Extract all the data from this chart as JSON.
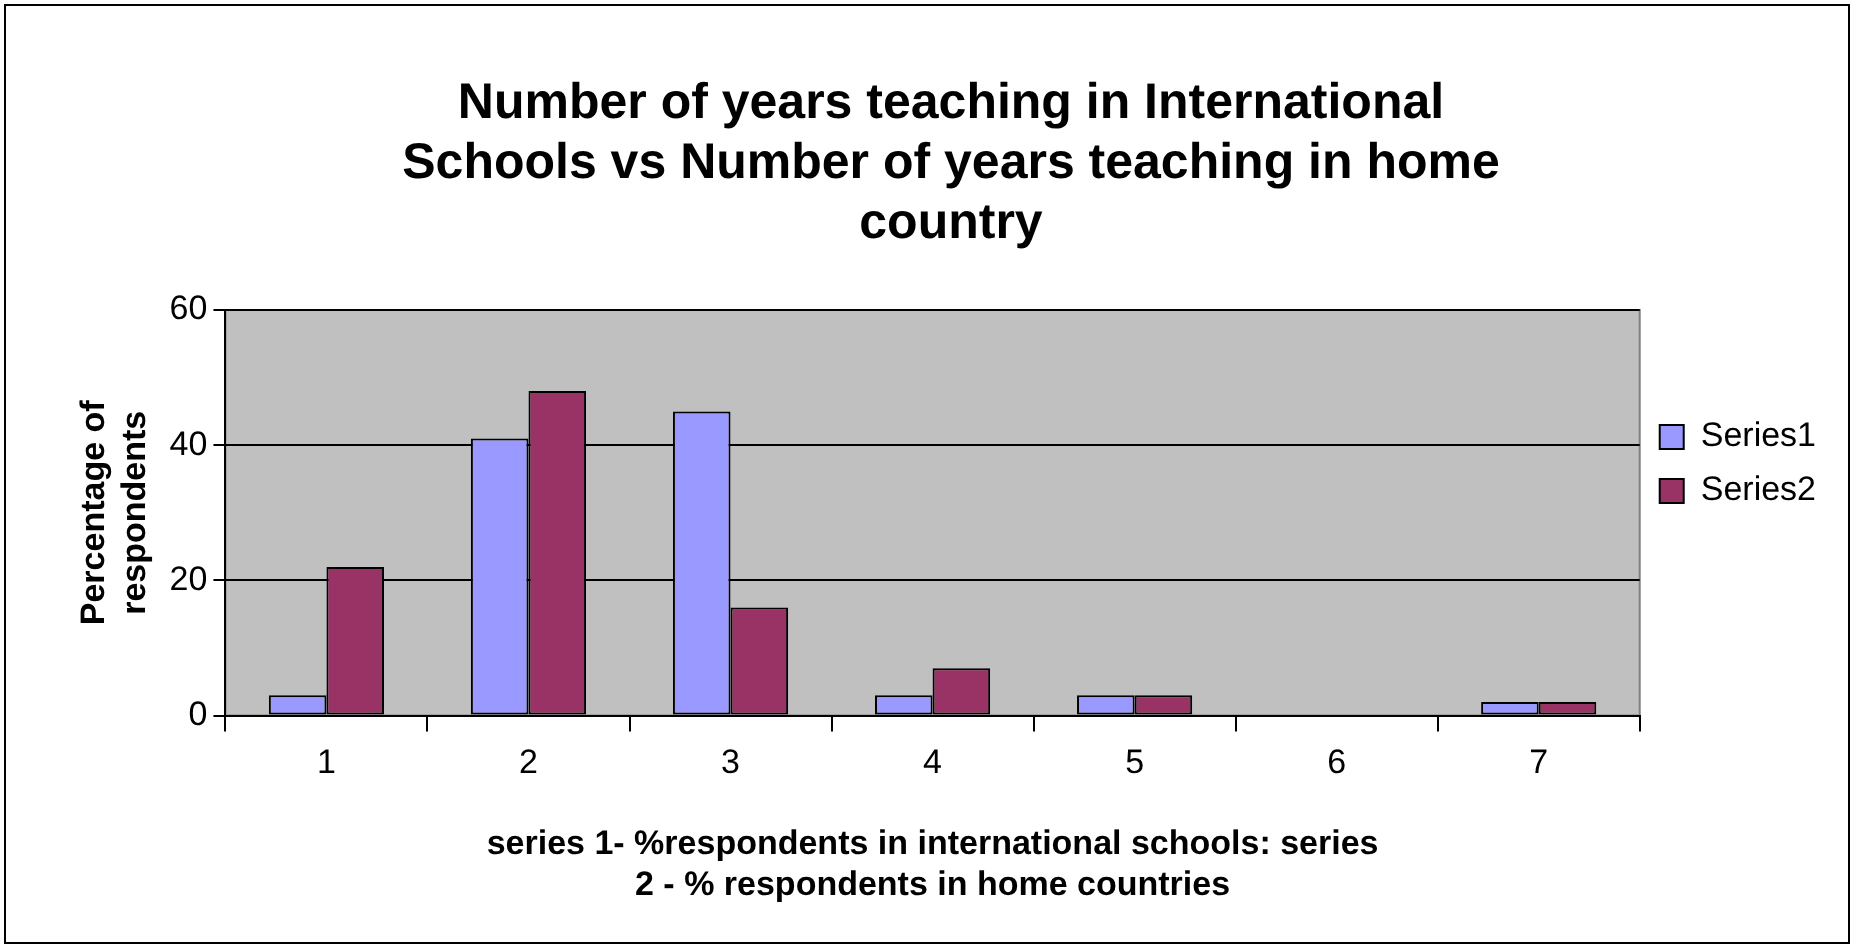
{
  "chart_data": {
    "type": "bar",
    "title": "Number of years teaching in International Schools vs Number of years teaching in home country",
    "xlabel": "series 1- %respondents in international schools: series 2 - % respondents in home countries",
    "ylabel": "Percentage of respondents",
    "categories": [
      "1",
      "2",
      "3",
      "4",
      "5",
      "6",
      "7"
    ],
    "series": [
      {
        "name": "Series1",
        "color": "#9999ff",
        "values": [
          3,
          41,
          45,
          3,
          3,
          0,
          2
        ]
      },
      {
        "name": "Series2",
        "color": "#993366",
        "values": [
          22,
          48,
          16,
          7,
          3,
          0,
          2
        ]
      }
    ],
    "ylim": [
      0,
      60
    ],
    "yticks": [
      0,
      20,
      40,
      60
    ],
    "grid": "y",
    "legend": "right"
  }
}
